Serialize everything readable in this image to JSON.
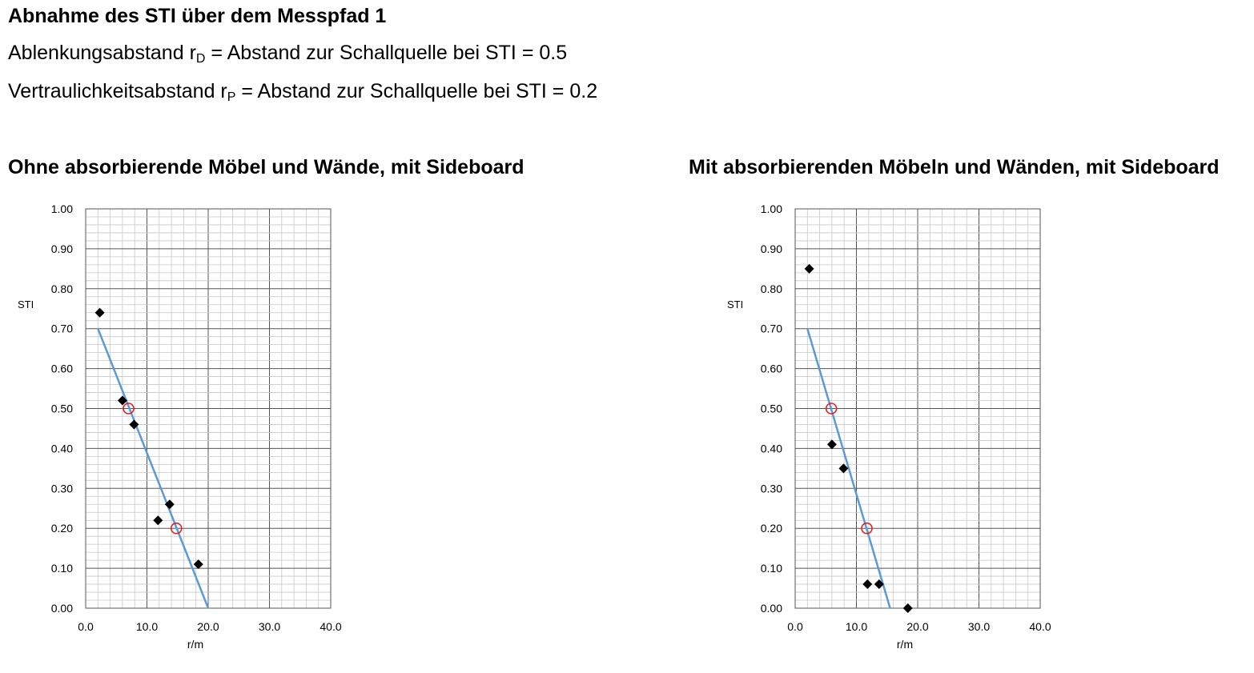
{
  "header": {
    "title": "Abnahme des STI über dem Messpfad 1",
    "line1": {
      "prefix": "Ablenkungsabstand r",
      "sub": "D",
      "suffix": " = Abstand zur Schallquelle bei STI = 0.5"
    },
    "line2": {
      "prefix": "Vertraulichkeitsabstand r",
      "sub": "P",
      "suffix": " = Abstand zur Schallquelle bei STI = 0.2"
    }
  },
  "charts": [
    {
      "heading_bold": "Ohne",
      "heading_rest": " absorbierende Möbel und Wände, mit Sideboard"
    },
    {
      "heading_bold": "Mit",
      "heading_rest": " absorbierenden Möbeln und Wänden, mit Sideboard"
    }
  ],
  "chart_data": [
    {
      "type": "scatter",
      "title": "Ohne absorbierende Möbel und Wände, mit Sideboard",
      "xlabel": "r/m",
      "ylabel": "STI",
      "xlim": [
        0,
        40
      ],
      "ylim": [
        0,
        1
      ],
      "x_ticks": [
        "0.0",
        "10.0",
        "20.0",
        "30.0",
        "40.0"
      ],
      "y_ticks": [
        "0.00",
        "0.10",
        "0.20",
        "0.30",
        "0.40",
        "0.50",
        "0.60",
        "0.70",
        "0.80",
        "0.90",
        "1.00"
      ],
      "grid": true,
      "points": [
        [
          2.3,
          0.74
        ],
        [
          6.0,
          0.52
        ],
        [
          7.9,
          0.46
        ],
        [
          11.8,
          0.22
        ],
        [
          13.7,
          0.26
        ],
        [
          18.4,
          0.11
        ]
      ],
      "marker_color": "#000000",
      "trend_line": [
        [
          2.0,
          0.7
        ],
        [
          20.0,
          0.0
        ]
      ],
      "trend_color": "#5b9bd5",
      "reference_points": [
        [
          7.0,
          0.5
        ],
        [
          14.8,
          0.2
        ]
      ],
      "reference_color": "#e02020"
    },
    {
      "type": "scatter",
      "title": "Mit absorbierenden Möbeln und Wänden, mit Sideboard",
      "xlabel": "r/m",
      "ylabel": "STI",
      "xlim": [
        0,
        40
      ],
      "ylim": [
        0,
        1
      ],
      "x_ticks": [
        "0.0",
        "10.0",
        "20.0",
        "30.0",
        "40.0"
      ],
      "y_ticks": [
        "0.00",
        "0.10",
        "0.20",
        "0.30",
        "0.40",
        "0.50",
        "0.60",
        "0.70",
        "0.80",
        "0.90",
        "1.00"
      ],
      "grid": true,
      "points": [
        [
          2.3,
          0.85
        ],
        [
          6.0,
          0.41
        ],
        [
          7.9,
          0.35
        ],
        [
          11.8,
          0.06
        ],
        [
          13.7,
          0.06
        ],
        [
          18.4,
          0.0
        ]
      ],
      "marker_color": "#000000",
      "trend_line": [
        [
          2.0,
          0.7
        ],
        [
          15.5,
          0.0
        ]
      ],
      "trend_color": "#5b9bd5",
      "reference_points": [
        [
          5.9,
          0.5
        ],
        [
          11.7,
          0.2
        ]
      ],
      "reference_color": "#e02020"
    }
  ]
}
